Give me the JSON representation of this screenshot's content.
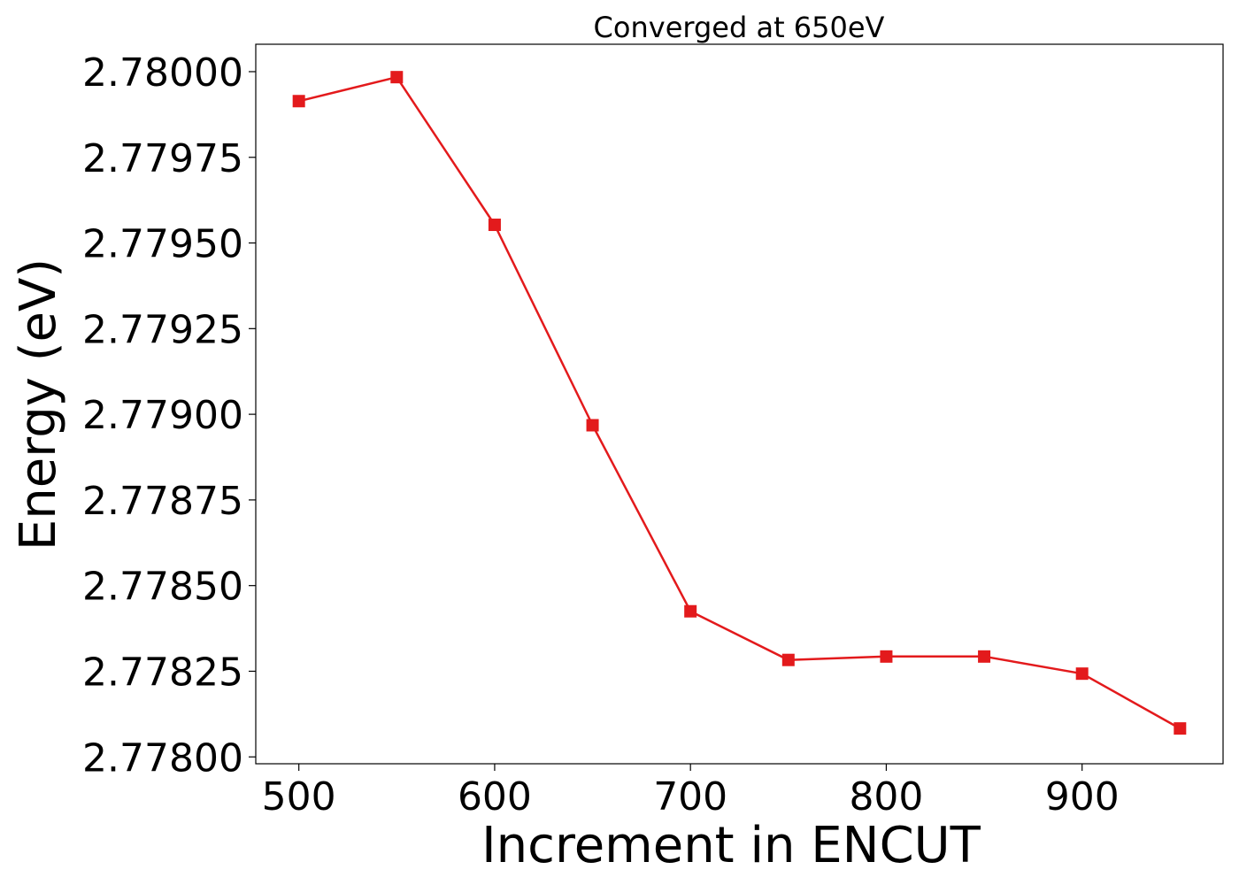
{
  "chart_data": {
    "type": "line",
    "title": "Converged at 650eV",
    "xlabel": "Increment in ENCUT",
    "ylabel": "Energy (eV)",
    "xlim": [
      478,
      972
    ],
    "ylim": [
      2.77798,
      2.78008
    ],
    "x_ticks": [
      500,
      600,
      700,
      800,
      900
    ],
    "y_ticks": [
      2.778,
      2.77825,
      2.7785,
      2.77875,
      2.779,
      2.77925,
      2.7795,
      2.77975,
      2.78
    ],
    "y_tick_labels": [
      "2.77800",
      "2.77825",
      "2.77850",
      "2.77875",
      "2.77900",
      "2.77925",
      "2.77950",
      "2.77975",
      "2.78000"
    ],
    "grid": false,
    "legend": "none",
    "series": [
      {
        "color": "#e31a1c",
        "marker": "square",
        "x": [
          500,
          550,
          600,
          650,
          700,
          750,
          800,
          850,
          900,
          950
        ],
        "y": [
          2.779914,
          2.779984,
          2.779553,
          2.778968,
          2.778425,
          2.778283,
          2.778293,
          2.778293,
          2.778243,
          2.778083
        ]
      }
    ]
  }
}
